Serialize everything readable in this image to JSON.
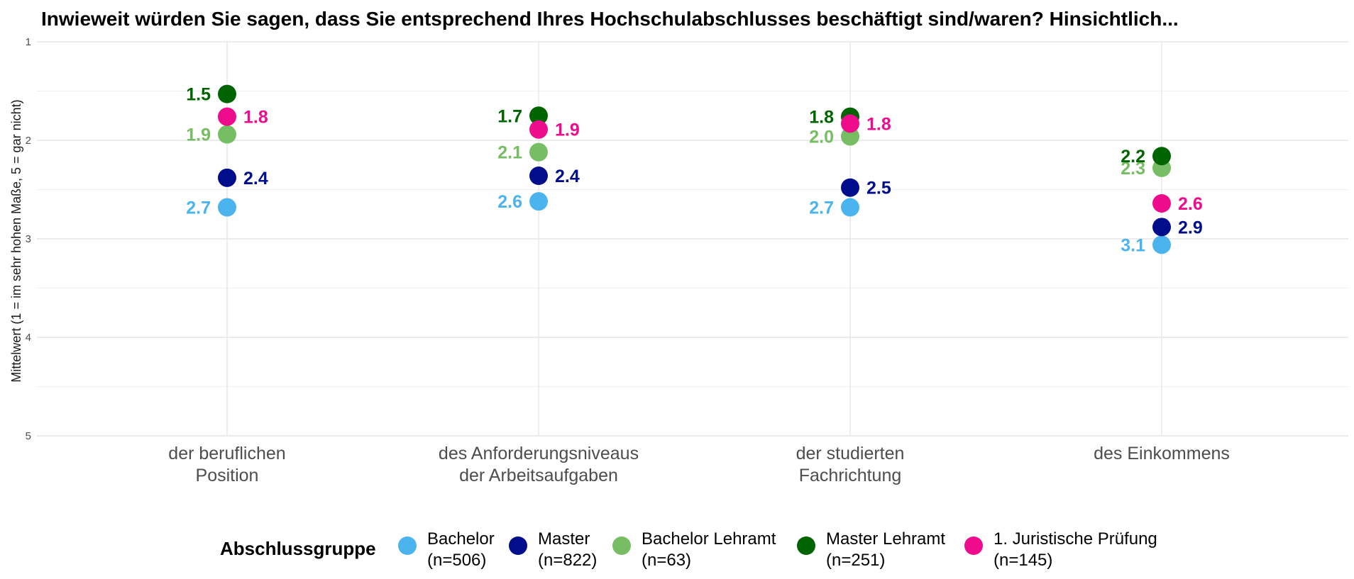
{
  "chart_data": {
    "type": "scatter",
    "title": "Inwieweit würden Sie sagen, dass Sie entsprechend Ihres Hochschulabschlusses beschäftigt sind/waren? Hinsichtlich...",
    "ylabel": "Mittelwert (1 = im sehr hohen Maße, 5 = gar nicht)",
    "xlabel": "",
    "ylim": [
      1,
      5
    ],
    "y_reversed": true,
    "yticks": [
      "1",
      "2",
      "3",
      "4",
      "5"
    ],
    "categories": [
      [
        "der beruflichen",
        "Position"
      ],
      [
        "des Anforderungsniveaus",
        "der Arbeitsaufgaben"
      ],
      [
        "der studierten",
        "Fachrichtung"
      ],
      [
        "des Einkommens"
      ]
    ],
    "legend": {
      "title": "Abschlussgruppe",
      "position": "bottom"
    },
    "series": [
      {
        "name": "Bachelor",
        "n": "(n=506)",
        "color": "#4BB4EE",
        "values": [
          2.68,
          2.62,
          2.68,
          3.06
        ],
        "labels": [
          "2.7",
          "2.6",
          "2.7",
          "3.1"
        ],
        "label_side": [
          "left",
          "left",
          "left",
          "left"
        ]
      },
      {
        "name": "Master",
        "n": "(n=822)",
        "color": "#000E8C",
        "values": [
          2.38,
          2.36,
          2.48,
          2.88
        ],
        "labels": [
          "2.4",
          "2.4",
          "2.5",
          "2.9"
        ],
        "label_side": [
          "right",
          "right",
          "right",
          "right"
        ]
      },
      {
        "name": "Bachelor Lehramt",
        "n": "(n=63)",
        "color": "#77BD64",
        "values": [
          1.94,
          2.12,
          1.96,
          2.28
        ],
        "labels": [
          "1.9",
          "2.1",
          "2.0",
          "2.3"
        ],
        "label_side": [
          "left",
          "left",
          "left",
          "left"
        ]
      },
      {
        "name": "Master Lehramt",
        "n": "(n=251)",
        "color": "#006400",
        "values": [
          1.53,
          1.75,
          1.76,
          2.16
        ],
        "labels": [
          "1.5",
          "1.7",
          "1.8",
          "2.2"
        ],
        "label_side": [
          "left",
          "left",
          "left",
          "left"
        ]
      },
      {
        "name": "1. Juristische Prüfung",
        "n": "(n=145)",
        "color": "#EE0C8C",
        "values": [
          1.76,
          1.89,
          1.83,
          2.64
        ],
        "labels": [
          "1.8",
          "1.9",
          "1.8",
          "2.6"
        ],
        "label_side": [
          "right",
          "right",
          "right",
          "right"
        ]
      }
    ]
  }
}
